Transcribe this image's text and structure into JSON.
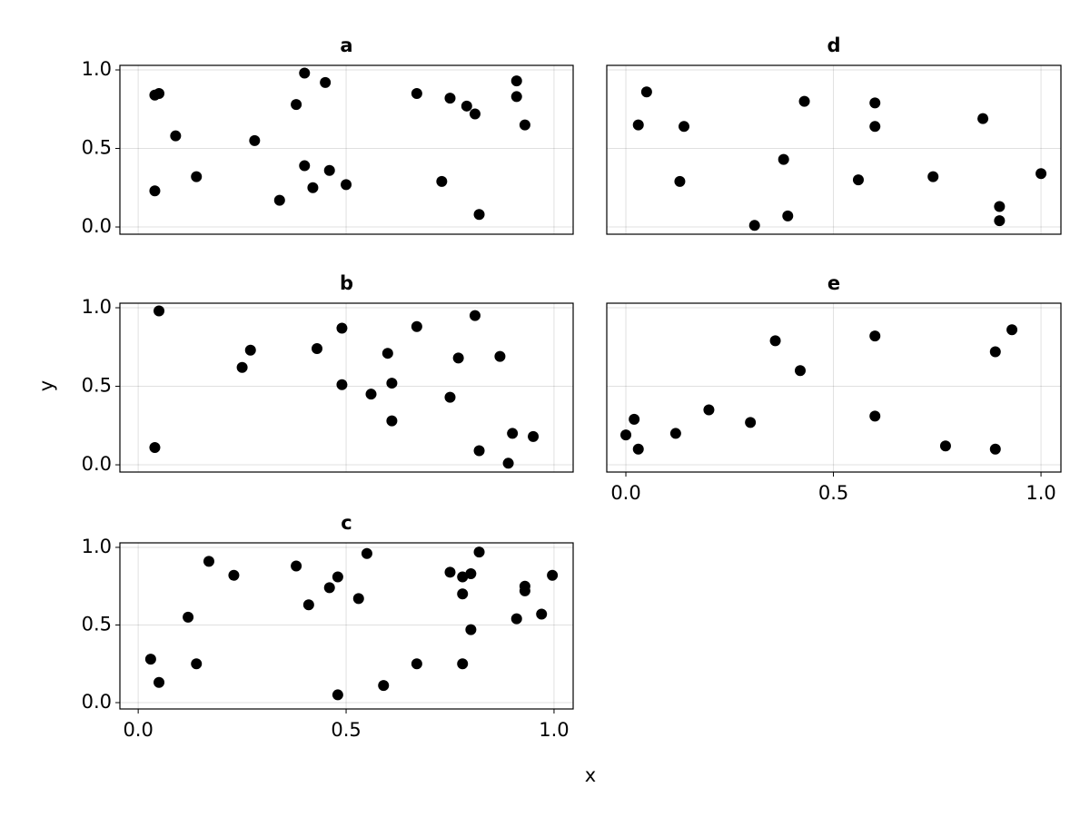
{
  "xlabel": "x",
  "ylabel": "y",
  "chart_data": [
    {
      "type": "scatter",
      "title": "a",
      "color": "#000000",
      "grid": true,
      "x": [
        0.04,
        0.04,
        0.05,
        0.09,
        0.14,
        0.28,
        0.34,
        0.38,
        0.4,
        0.4,
        0.42,
        0.45,
        0.46,
        0.5,
        0.67,
        0.73,
        0.75,
        0.79,
        0.81,
        0.82,
        0.91,
        0.91,
        0.93
      ],
      "y": [
        0.23,
        0.84,
        0.85,
        0.58,
        0.32,
        0.55,
        0.17,
        0.78,
        0.98,
        0.39,
        0.25,
        0.92,
        0.36,
        0.27,
        0.85,
        0.29,
        0.82,
        0.77,
        0.72,
        0.08,
        0.93,
        0.83,
        0.65
      ],
      "xlim": [
        -0.044,
        1.046
      ],
      "ylim": [
        -0.046,
        1.029
      ],
      "xticks": [
        0,
        0.5,
        1
      ],
      "yticks": [
        {
          "value": 0,
          "label": "0.0"
        },
        {
          "value": 0.5,
          "label": "0.5"
        },
        {
          "value": 1,
          "label": "1.0"
        }
      ]
    },
    {
      "type": "scatter",
      "title": "b",
      "color": "#000000",
      "grid": true,
      "x": [
        0.05,
        0.04,
        0.25,
        0.27,
        0.43,
        0.49,
        0.49,
        0.56,
        0.6,
        0.61,
        0.61,
        0.67,
        0.75,
        0.77,
        0.81,
        0.82,
        0.87,
        0.89,
        0.9,
        0.95
      ],
      "y": [
        0.98,
        0.11,
        0.62,
        0.73,
        0.74,
        0.87,
        0.51,
        0.45,
        0.71,
        0.52,
        0.28,
        0.88,
        0.43,
        0.68,
        0.95,
        0.09,
        0.69,
        0.01,
        0.2,
        0.18
      ],
      "xlim": [
        -0.044,
        1.046
      ],
      "ylim": [
        -0.046,
        1.029
      ],
      "xticks": [
        0,
        0.5,
        1
      ],
      "yticks": [
        {
          "value": 0,
          "label": "0.0"
        },
        {
          "value": 0.5,
          "label": "0.5"
        },
        {
          "value": 1,
          "label": "1.0"
        }
      ]
    },
    {
      "type": "scatter",
      "title": "c",
      "color": "#000000",
      "grid": true,
      "x": [
        0.03,
        0.05,
        0.12,
        0.14,
        0.17,
        0.23,
        0.38,
        0.41,
        0.46,
        0.48,
        0.48,
        0.53,
        0.55,
        0.59,
        0.67,
        0.75,
        0.78,
        0.78,
        0.78,
        0.8,
        0.8,
        0.82,
        0.91,
        0.93,
        0.93,
        0.97,
        0.996
      ],
      "y": [
        0.28,
        0.13,
        0.55,
        0.25,
        0.91,
        0.82,
        0.88,
        0.63,
        0.74,
        0.81,
        0.05,
        0.67,
        0.96,
        0.11,
        0.25,
        0.84,
        0.7,
        0.81,
        0.25,
        0.83,
        0.47,
        0.97,
        0.54,
        0.75,
        0.72,
        0.57,
        0.82
      ],
      "xlim": [
        -0.044,
        1.046
      ],
      "ylim": [
        -0.041,
        1.029
      ],
      "xticks": [
        {
          "value": 0,
          "label": "0.0"
        },
        {
          "value": 0.5,
          "label": "0.5"
        },
        {
          "value": 1,
          "label": "1.0"
        }
      ],
      "yticks": [
        {
          "value": 0,
          "label": "0.0"
        },
        {
          "value": 0.5,
          "label": "0.5"
        },
        {
          "value": 1,
          "label": "1.0"
        }
      ]
    },
    {
      "type": "scatter",
      "title": "d",
      "color": "#000000",
      "grid": true,
      "x": [
        0.05,
        0.03,
        0.14,
        0.13,
        0.31,
        0.38,
        0.39,
        0.43,
        0.56,
        0.6,
        0.6,
        0.74,
        0.86,
        0.9,
        0.9,
        1.0
      ],
      "y": [
        0.86,
        0.65,
        0.64,
        0.29,
        0.01,
        0.43,
        0.07,
        0.8,
        0.3,
        0.79,
        0.64,
        0.32,
        0.69,
        0.13,
        0.04,
        0.34
      ],
      "xlim": [
        -0.046,
        1.048
      ],
      "ylim": [
        -0.046,
        1.029
      ],
      "xticks": [
        0,
        0.5,
        1
      ],
      "yticks": [
        0,
        0.5,
        1
      ]
    },
    {
      "type": "scatter",
      "title": "e",
      "color": "#000000",
      "grid": true,
      "x": [
        0.0,
        0.02,
        0.03,
        0.12,
        0.2,
        0.3,
        0.36,
        0.42,
        0.6,
        0.6,
        0.77,
        0.89,
        0.89,
        0.93
      ],
      "y": [
        0.19,
        0.29,
        0.1,
        0.2,
        0.35,
        0.27,
        0.79,
        0.6,
        0.82,
        0.31,
        0.12,
        0.72,
        0.1,
        0.86
      ],
      "xlim": [
        -0.046,
        1.048
      ],
      "ylim": [
        -0.046,
        1.029
      ],
      "xticks": [
        {
          "value": 0,
          "label": "0.0"
        },
        {
          "value": 0.5,
          "label": "0.5"
        },
        {
          "value": 1,
          "label": "1.0"
        }
      ],
      "yticks": [
        0,
        0.5,
        1
      ]
    }
  ]
}
